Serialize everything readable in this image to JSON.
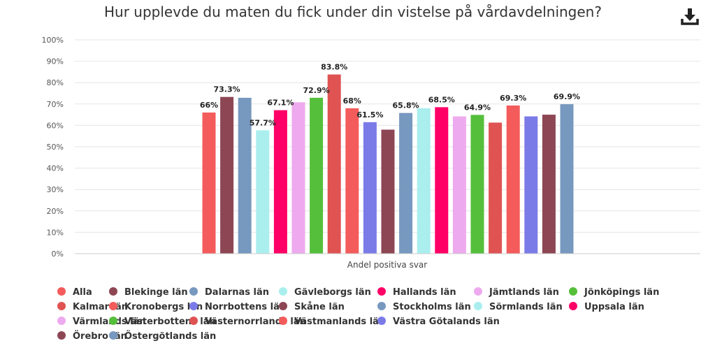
{
  "chart_data": {
    "type": "bar",
    "title": "Hur upplevde du maten du fick under din vistelse på vårdavdelningen?",
    "categories": [
      "Andel positiva svar"
    ],
    "xlabel": "Andel positiva svar",
    "ylabel": "",
    "ylim": [
      0,
      100
    ],
    "y_ticks": [
      "0%",
      "10%",
      "20%",
      "30%",
      "40%",
      "50%",
      "60%",
      "70%",
      "80%",
      "90%",
      "100%"
    ],
    "legend_position": "bottom",
    "series": [
      {
        "name": "Alla",
        "values": [
          66
        ],
        "label": "66%",
        "color": "#f45b5b"
      },
      {
        "name": "Blekinge län",
        "values": [
          73.3
        ],
        "label": "73.3%",
        "color": "#8d4654"
      },
      {
        "name": "Dalarnas län",
        "values": [
          72.9
        ],
        "label": "",
        "color": "#7798bf"
      },
      {
        "name": "Gävleborgs län",
        "values": [
          57.7
        ],
        "label": "57.7%",
        "color": "#aaeeee"
      },
      {
        "name": "Hallands län",
        "values": [
          67.1
        ],
        "label": "67.1%",
        "color": "#ff0066"
      },
      {
        "name": "Jämtlands län",
        "values": [
          70.8
        ],
        "label": "",
        "color": "#eeaaee"
      },
      {
        "name": "Jönköpings län",
        "values": [
          72.9
        ],
        "label": "72.9%",
        "color": "#55bf3b"
      },
      {
        "name": "Kalmar län",
        "values": [
          83.8
        ],
        "label": "83.8%",
        "color": "#df5353"
      },
      {
        "name": "Kronobergs län",
        "values": [
          68
        ],
        "label": "68%",
        "color": "#f45b5b"
      },
      {
        "name": "Norrbottens län",
        "values": [
          61.5
        ],
        "label": "61.5%",
        "color": "#7b7be8"
      },
      {
        "name": "Skåne län",
        "values": [
          58
        ],
        "label": "",
        "color": "#8d4654"
      },
      {
        "name": "Stockholms län",
        "values": [
          65.8
        ],
        "label": "65.8%",
        "color": "#7798bf"
      },
      {
        "name": "Sörmlands län",
        "values": [
          68
        ],
        "label": "",
        "color": "#aaeeee"
      },
      {
        "name": "Uppsala län",
        "values": [
          68.5
        ],
        "label": "68.5%",
        "color": "#ff0066"
      },
      {
        "name": "Värmlands län",
        "values": [
          64.2
        ],
        "label": "",
        "color": "#eeaaee"
      },
      {
        "name": "Västerbottens län",
        "values": [
          64.9
        ],
        "label": "64.9%",
        "color": "#55bf3b"
      },
      {
        "name": "Västernorrlands län",
        "values": [
          61.3
        ],
        "label": "",
        "color": "#df5353"
      },
      {
        "name": "Västmanlands län",
        "values": [
          69.3
        ],
        "label": "69.3%",
        "color": "#f45b5b"
      },
      {
        "name": "Västra Götalands län",
        "values": [
          64.2
        ],
        "label": "",
        "color": "#7b7be8"
      },
      {
        "name": "Örebro län",
        "values": [
          65
        ],
        "label": "",
        "color": "#8d4654"
      },
      {
        "name": "Östergötlands län",
        "values": [
          69.9
        ],
        "label": "69.9%",
        "color": "#7798bf"
      }
    ]
  },
  "toolbar": {
    "download_icon": "download-icon"
  }
}
